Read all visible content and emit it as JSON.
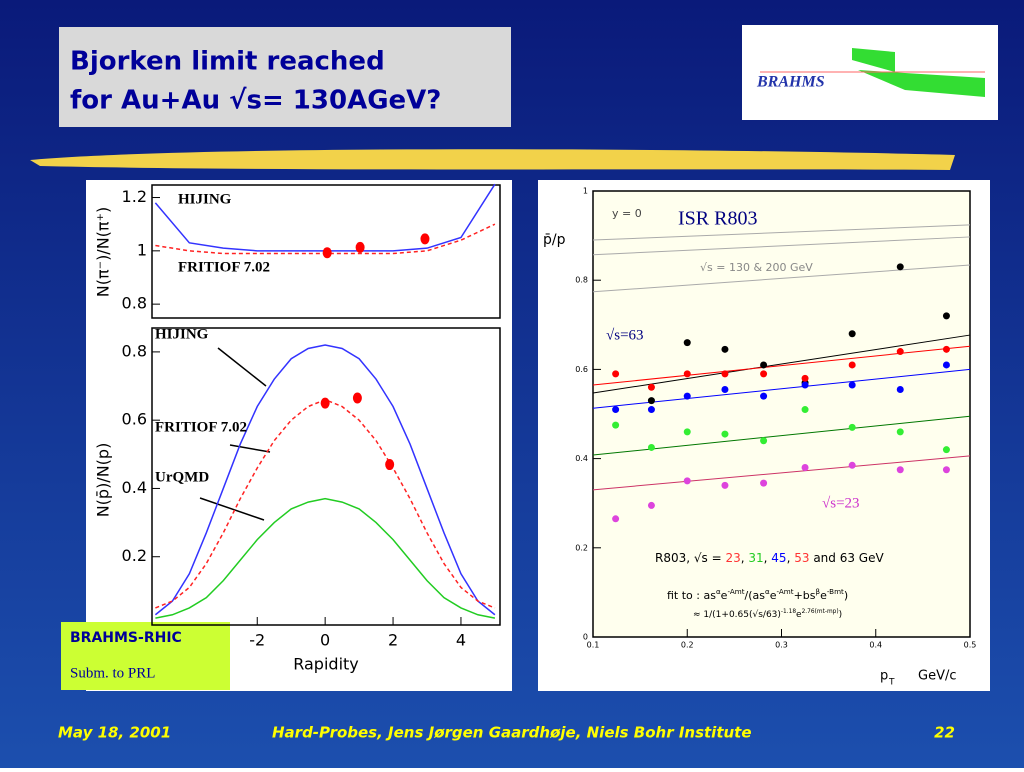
{
  "header": {
    "title_lines": [
      "Bjorken limit reached",
      "for Au+Au √s= 130AGeV?"
    ],
    "logo": "BRAHMS"
  },
  "note": {
    "title": "BRAHMS-RHIC",
    "text": "Subm. to PRL"
  },
  "footer": {
    "date": "May 18, 2001",
    "event": "Hard-Probes, Jens Jørgen Gaardhøje, Niels Bohr Institute",
    "page": "22"
  },
  "chart_data": [
    {
      "type": "line",
      "ylabel": "N(π⁻)/N(π⁺)",
      "xlim": [
        -5.1,
        5.15
      ],
      "ylim": [
        0.748,
        1.247
      ],
      "yticks": [
        0.8,
        1,
        1.2
      ],
      "labels": [
        "HIJING",
        "FRITIOF 7.02"
      ],
      "curves": [
        {
          "color": "#3333ff",
          "dash": false,
          "x": [
            -5,
            -4,
            -3,
            -2,
            -1,
            0,
            1,
            2,
            3,
            4,
            5
          ],
          "values": [
            1.18,
            1.03,
            1.01,
            1.0,
            1.0,
            1.0,
            1.0,
            1.0,
            1.01,
            1.05,
            1.25
          ]
        },
        {
          "color": "#ff2222",
          "dash": true,
          "x": [
            -5,
            -4,
            -3,
            -2,
            -1,
            0,
            1,
            2,
            3,
            4,
            5
          ],
          "values": [
            1.02,
            1.0,
            0.99,
            0.99,
            0.99,
            0.99,
            0.99,
            0.99,
            1.0,
            1.04,
            1.1
          ]
        }
      ],
      "points": {
        "color": "#ff0000",
        "x": [
          0.06,
          1.03,
          2.94
        ],
        "values": [
          0.993,
          1.013,
          1.045
        ]
      }
    },
    {
      "type": "line",
      "ylabel": "N(p̄)/N(p)",
      "xlabel": "Rapidity",
      "xlim": [
        -5.1,
        5.15
      ],
      "ylim": [
        0,
        0.87
      ],
      "xticks": [
        -2,
        0,
        2,
        4
      ],
      "yticks": [
        0.2,
        0.4,
        0.6,
        0.8
      ],
      "labels": [
        "HIJING",
        "FRITIOF 7.02",
        "UrQMD"
      ],
      "curves": [
        {
          "color": "#3333ff",
          "dash": false,
          "x": [
            -5,
            -4.5,
            -4,
            -3.5,
            -3,
            -2.5,
            -2,
            -1.5,
            -1,
            -0.5,
            0,
            0.5,
            1,
            1.5,
            2,
            2.5,
            3,
            3.5,
            4,
            4.5,
            5
          ],
          "values": [
            0.03,
            0.07,
            0.15,
            0.27,
            0.4,
            0.53,
            0.64,
            0.72,
            0.78,
            0.81,
            0.82,
            0.81,
            0.78,
            0.72,
            0.64,
            0.53,
            0.4,
            0.27,
            0.15,
            0.07,
            0.03
          ]
        },
        {
          "color": "#ff2222",
          "dash": true,
          "x": [
            -5,
            -4.5,
            -4,
            -3.5,
            -3,
            -2.5,
            -2,
            -1.5,
            -1,
            -0.5,
            0,
            0.5,
            1,
            1.5,
            2,
            2.5,
            3,
            3.5,
            4,
            4.5,
            5
          ],
          "values": [
            0.05,
            0.07,
            0.11,
            0.18,
            0.27,
            0.37,
            0.46,
            0.54,
            0.6,
            0.64,
            0.66,
            0.64,
            0.6,
            0.54,
            0.46,
            0.37,
            0.27,
            0.18,
            0.11,
            0.07,
            0.05
          ]
        },
        {
          "color": "#22cc22",
          "dash": false,
          "x": [
            -5,
            -4.5,
            -4,
            -3.5,
            -3,
            -2.5,
            -2,
            -1.5,
            -1,
            -0.5,
            0,
            0.5,
            1,
            1.5,
            2,
            2.5,
            3,
            3.5,
            4,
            4.5,
            5
          ],
          "values": [
            0.02,
            0.03,
            0.05,
            0.08,
            0.13,
            0.19,
            0.25,
            0.3,
            0.34,
            0.36,
            0.37,
            0.36,
            0.34,
            0.3,
            0.25,
            0.19,
            0.13,
            0.08,
            0.05,
            0.03,
            0.02
          ]
        }
      ],
      "points": {
        "color": "#ff0000",
        "x": [
          0,
          0.95,
          1.9
        ],
        "values": [
          0.65,
          0.665,
          0.47
        ]
      }
    },
    {
      "type": "scatter",
      "ylabel": "p̄/p",
      "xlabel": "p",
      "xlabel_sub": "T",
      "xunit": "GeV/c",
      "xlim": [
        0.1,
        0.5
      ],
      "ylim": [
        0,
        1
      ],
      "xticks": [
        0.1,
        0.2,
        0.3,
        0.4,
        0.5
      ],
      "yticks": [
        0,
        0.2,
        0.4,
        0.6,
        0.8,
        1
      ],
      "annotations": [
        {
          "text": "y = 0",
          "color": "#444444"
        },
        {
          "text": "ISR R803",
          "color": "#000080"
        },
        {
          "text": "√s = 130 & 200 GeV",
          "color": "#888888"
        },
        {
          "text": "√s=63",
          "color": "#000080"
        },
        {
          "text": "√s=23",
          "color": "#cc33cc"
        }
      ],
      "legend_parts": [
        {
          "text": "R803,  √s = ",
          "color": "#000000"
        },
        {
          "text": "23",
          "color": "#ff3333"
        },
        {
          "text": ", ",
          "color": "#000000"
        },
        {
          "text": "31",
          "color": "#22cc22"
        },
        {
          "text": ", ",
          "color": "#000000"
        },
        {
          "text": "45",
          "color": "#0000ff"
        },
        {
          "text": ", ",
          "color": "#000000"
        },
        {
          "text": "53",
          "color": "#ff3333"
        },
        {
          "text": " and 63 GeV",
          "color": "#000000"
        }
      ],
      "formula_parts": [
        {
          "text": "fit to : as"
        },
        {
          "text": "α",
          "sup": true
        },
        {
          "text": "e"
        },
        {
          "text": "-Amt",
          "sup": true
        },
        {
          "text": "/(as"
        },
        {
          "text": "α",
          "sup": true
        },
        {
          "text": "e"
        },
        {
          "text": "-Amt",
          "sup": true
        },
        {
          "text": "+bs"
        },
        {
          "text": "β",
          "sup": true
        },
        {
          "text": "e"
        },
        {
          "text": "-Bmt",
          "sup": true
        },
        {
          "text": ")"
        }
      ],
      "approx_parts": [
        {
          "text": "≈ 1/(1+0.65(√s/63)"
        },
        {
          "text": "-1.18",
          "sup": true
        },
        {
          "text": "e"
        },
        {
          "text": "2.76(mt-mp)",
          "sup": true
        },
        {
          "text": ")"
        }
      ],
      "x": [
        0.124,
        0.162,
        0.2,
        0.24,
        0.281,
        0.325,
        0.375,
        0.426,
        0.475
      ],
      "series": [
        {
          "color": "#000000",
          "values": [
            null,
            0.53,
            0.66,
            0.645,
            0.61,
            0.57,
            0.68,
            0.83,
            0.72
          ]
        },
        {
          "color": "#ff0000",
          "values": [
            0.59,
            0.56,
            0.59,
            0.59,
            0.59,
            0.58,
            0.61,
            0.64,
            0.645
          ]
        },
        {
          "color": "#0000ff",
          "values": [
            0.51,
            0.51,
            0.54,
            0.555,
            0.54,
            0.565,
            0.565,
            0.555,
            0.61
          ]
        },
        {
          "color": "#33ee33",
          "values": [
            0.475,
            0.425,
            0.46,
            0.455,
            0.44,
            0.51,
            0.47,
            0.46,
            0.42
          ]
        },
        {
          "color": "#dd44dd",
          "values": [
            0.265,
            0.295,
            0.35,
            0.34,
            0.345,
            0.38,
            0.385,
            0.375,
            0.375
          ]
        }
      ],
      "fit_x": [
        0.1,
        0.5
      ],
      "fits": [
        {
          "color": "#aaaaaa",
          "values": [
            0.89,
            0.924
          ]
        },
        {
          "color": "#aaaaaa",
          "values": [
            0.857,
            0.897
          ]
        },
        {
          "color": "#aaaaaa",
          "values": [
            0.774,
            0.834
          ]
        },
        {
          "color": "#000000",
          "values": [
            0.547,
            0.677
          ]
        },
        {
          "color": "#ff0000",
          "values": [
            0.565,
            0.652
          ]
        },
        {
          "color": "#0000ff",
          "values": [
            0.513,
            0.6
          ]
        },
        {
          "color": "#007700",
          "values": [
            0.408,
            0.495
          ]
        },
        {
          "color": "#cc3366",
          "values": [
            0.33,
            0.406
          ]
        }
      ]
    }
  ]
}
